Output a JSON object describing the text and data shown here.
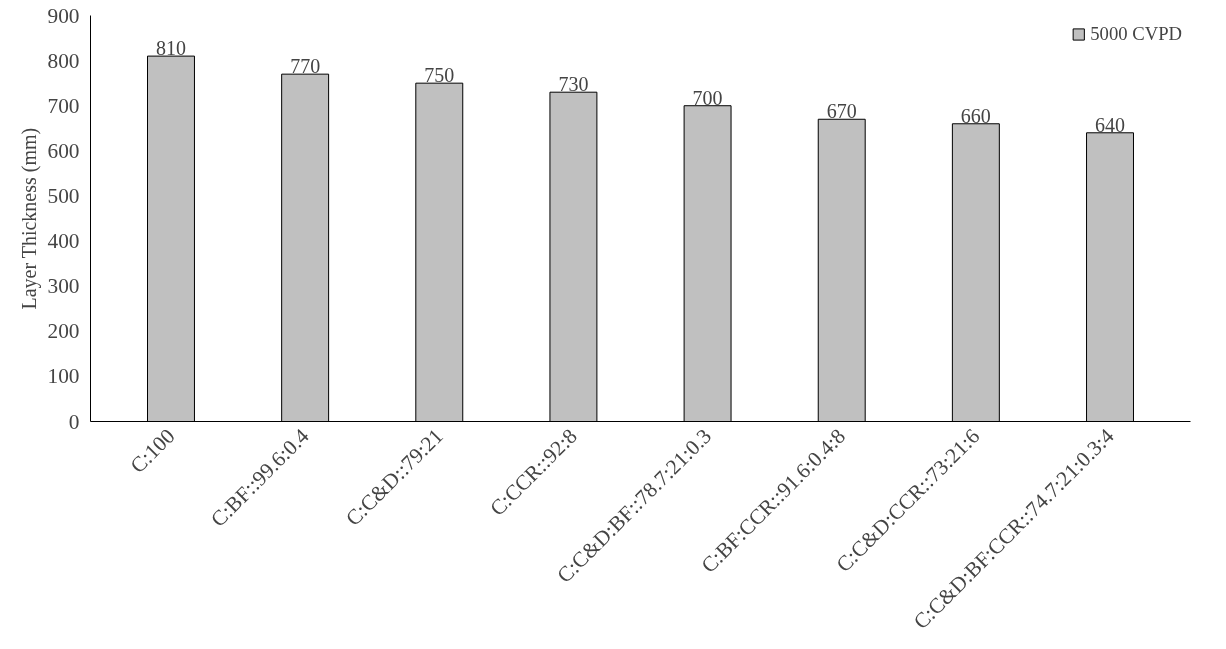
{
  "chart_data": {
    "type": "bar",
    "ylabel": "Layer Thickness (mm)",
    "categories": [
      "C:100",
      "C:BF::99.6:0.4",
      "C:C&D::79:21",
      "C:CCR::92:8",
      "C:C&D:BF::78.7:21:0.3",
      "C:BF:CCR::91.6:0.4:8",
      "C:C&D:CCR::73:21:6",
      "C:C&D:BF:CCR::74.7:21:0.3:4"
    ],
    "series": [
      {
        "name": "5000 CVPD",
        "color": "#c0c0c0",
        "values": [
          810,
          770,
          750,
          730,
          700,
          670,
          660,
          640
        ]
      }
    ],
    "ylim": [
      0,
      900
    ],
    "yticks": [
      0,
      100,
      200,
      300,
      400,
      500,
      600,
      700,
      800,
      900
    ],
    "data_labels": true,
    "grid": false,
    "legend": "top right"
  }
}
